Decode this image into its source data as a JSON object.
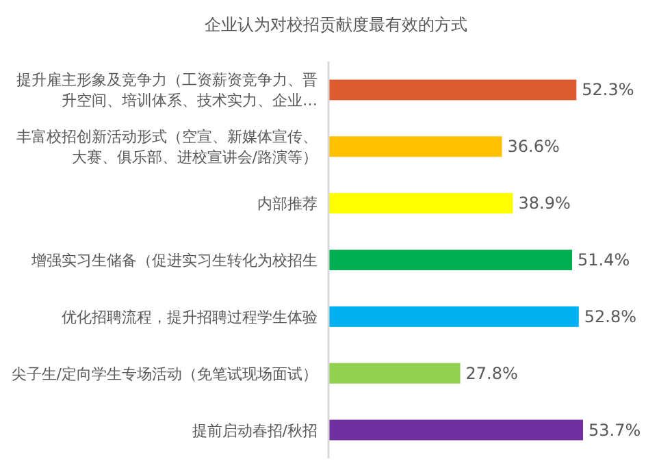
{
  "chart_data": {
    "type": "bar",
    "orientation": "horizontal",
    "title": "企业认为对校招贡献度最有效的方式",
    "value_labels": [
      "52.3%",
      "36.6%",
      "38.9%",
      "51.4%",
      "52.8%",
      "27.8%",
      "53.7%"
    ],
    "categories": [
      "提升雇主形象及竞争力（工资薪资竞争力、晋升空间、培训体系、技术实力、企业…",
      "丰富校招创新活动形式（空宣、新媒体宣传、大赛、俱乐部、进校宣讲会/路演等）",
      "内部推荐",
      "增强实习生储备（促进实习生转化为校招生",
      "优化招聘流程，提升招聘过程学生体验",
      "尖子生/定向学生专场活动（免笔试现场面试）",
      "提前启动春招/秋招"
    ],
    "values": [
      52.3,
      36.6,
      38.9,
      51.4,
      52.8,
      27.8,
      53.7
    ],
    "colors": [
      "#dd5c2f",
      "#ffc000",
      "#ffff00",
      "#00b050",
      "#00b0f0",
      "#92d050",
      "#7030a0"
    ]
  }
}
